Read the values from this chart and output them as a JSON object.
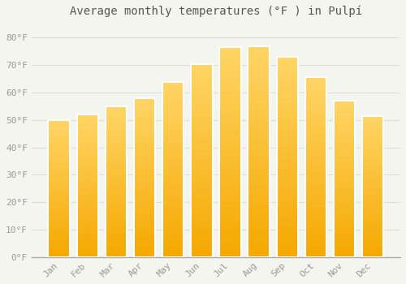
{
  "title": "Average monthly temperatures (°F ) in Pulpí",
  "months": [
    "Jan",
    "Feb",
    "Mar",
    "Apr",
    "May",
    "Jun",
    "Jul",
    "Aug",
    "Sep",
    "Oct",
    "Nov",
    "Dec"
  ],
  "values": [
    50.0,
    52.0,
    55.0,
    58.0,
    64.0,
    70.5,
    76.5,
    77.0,
    73.0,
    65.5,
    57.0,
    51.5
  ],
  "bar_color_top": "#FFC830",
  "bar_color_bottom": "#F5A800",
  "background_color": "#F5F5F0",
  "grid_color": "#DDDDDD",
  "yticks": [
    0,
    10,
    20,
    30,
    40,
    50,
    60,
    70,
    80
  ],
  "ylim": [
    0,
    85
  ],
  "title_fontsize": 10,
  "tick_fontsize": 8,
  "tick_label_color": "#999999",
  "font_family": "monospace"
}
